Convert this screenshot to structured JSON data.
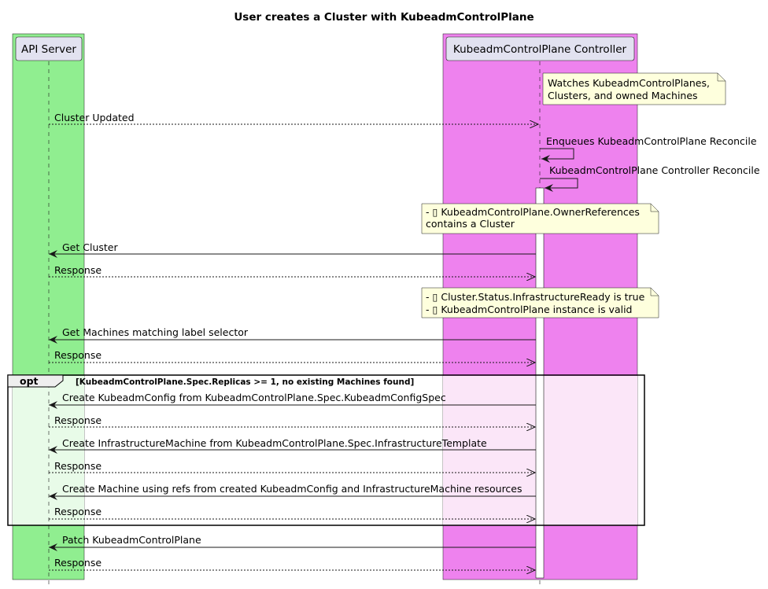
{
  "title": "User creates a Cluster with KubeadmControlPlane",
  "participants": [
    {
      "name": "API Server",
      "box_color": "#90EE90"
    },
    {
      "name": "KubeadmControlPlane Controller",
      "box_color": "#EE82EE"
    }
  ],
  "notes": [
    {
      "lines": [
        "Watches KubeadmControlPlanes,",
        "Clusters, and owned Machines"
      ]
    },
    {
      "lines": [
        "- ▯ KubeadmControlPlane.OwnerReferences",
        "contains a Cluster"
      ]
    },
    {
      "lines": [
        "- ▯ Cluster.Status.InfrastructureReady is true",
        "- ▯ KubeadmControlPlane instance is valid"
      ]
    }
  ],
  "messages": [
    {
      "label": "Cluster Updated",
      "style": "dashed"
    },
    {
      "label": "Enqueues KubeadmControlPlane Reconcile",
      "style": "self"
    },
    {
      "label": "KubeadmControlPlane Controller Reconcile",
      "style": "self"
    },
    {
      "label": "Get Cluster",
      "style": "solid"
    },
    {
      "label": "Response",
      "style": "dashed"
    },
    {
      "label": "Get Machines matching label selector",
      "style": "solid"
    },
    {
      "label": "Response",
      "style": "dashed"
    },
    {
      "label": "Create KubeadmConfig from KubeadmControlPlane.Spec.KubeadmConfigSpec",
      "style": "solid"
    },
    {
      "label": "Response",
      "style": "dashed"
    },
    {
      "label": "Create InfrastructureMachine from KubeadmControlPlane.Spec.InfrastructureTemplate",
      "style": "solid"
    },
    {
      "label": "Response",
      "style": "dashed"
    },
    {
      "label": "Create Machine using refs from created KubeadmConfig and InfrastructureMachine resources",
      "style": "solid"
    },
    {
      "label": "Response",
      "style": "dashed"
    },
    {
      "label": "Patch KubeadmControlPlane",
      "style": "solid"
    },
    {
      "label": "Response",
      "style": "dashed"
    }
  ],
  "opt": {
    "keyword": "opt",
    "condition": "[KubeadmControlPlane.Spec.Replicas >= 1, no existing Machines found]"
  }
}
